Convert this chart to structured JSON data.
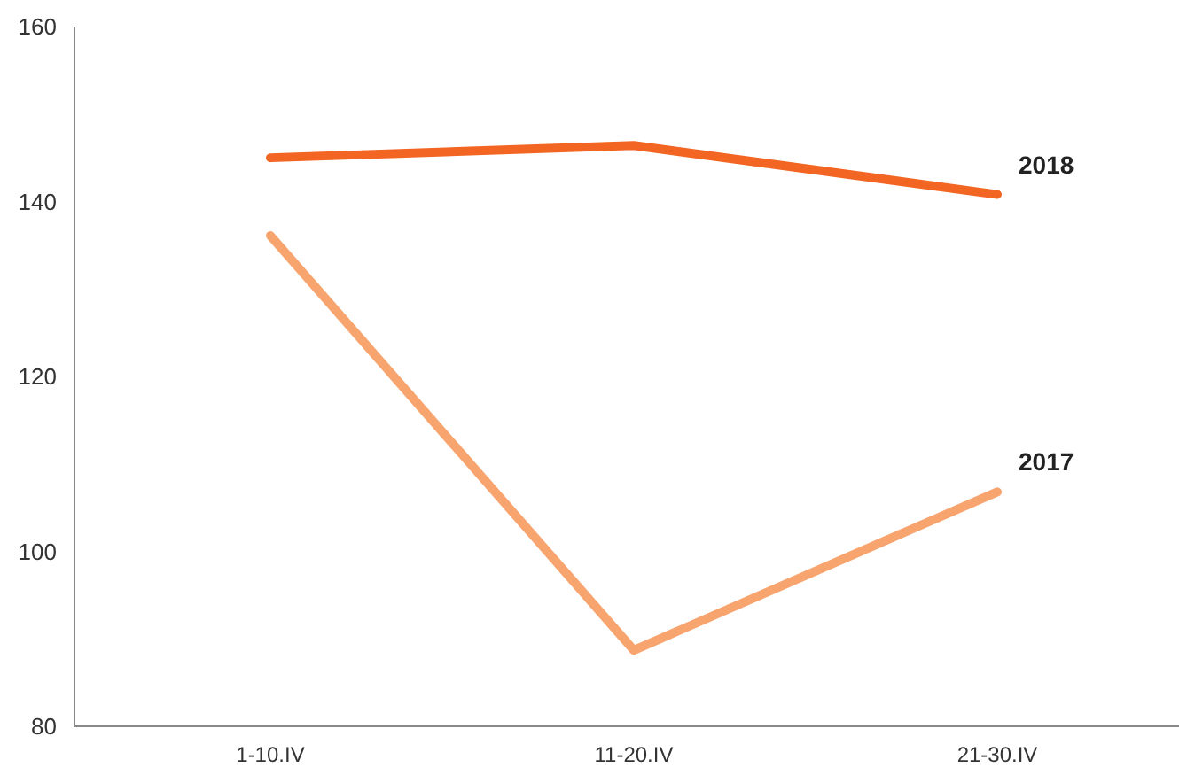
{
  "chart_data": {
    "type": "line",
    "categories": [
      "1-10.IV",
      "11-20.IV",
      "21-30.IV"
    ],
    "series": [
      {
        "name": "2018",
        "color": "#f26522",
        "values": [
          145,
          146.4,
          140.8
        ]
      },
      {
        "name": "2017",
        "color": "#f7a46f",
        "values": [
          136.1,
          88.7,
          106.8
        ]
      }
    ],
    "ylim": [
      80,
      160
    ],
    "yticks": [
      80,
      100,
      120,
      140,
      160
    ],
    "grid": false,
    "legend": false,
    "marker": "none",
    "line_style": "solid"
  }
}
